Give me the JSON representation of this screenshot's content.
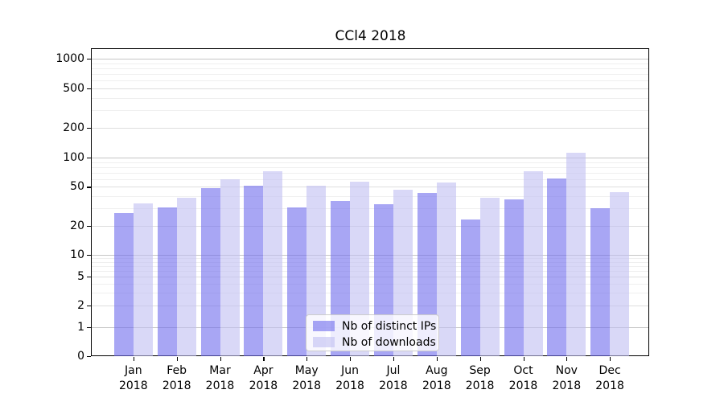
{
  "chart_data": {
    "type": "bar",
    "title": "CCl4 2018",
    "xlabel": "",
    "ylabel": "",
    "yscale": "symlog",
    "grid": true,
    "legend_position": "lower center",
    "ylim": [
      0,
      1400
    ],
    "y_ticks": [
      0,
      1,
      2,
      5,
      10,
      20,
      50,
      100,
      200,
      500,
      1000
    ],
    "categories": [
      "Jan 2018",
      "Feb 2018",
      "Mar 2018",
      "Apr 2018",
      "May 2018",
      "Jun 2018",
      "Jul 2018",
      "Aug 2018",
      "Sep 2018",
      "Oct 2018",
      "Nov 2018",
      "Dec 2018"
    ],
    "series": [
      {
        "name": "Nb of distinct IPs",
        "color": "#6E6BED",
        "alpha": 0.6,
        "composite_color_on_white": "#A8A6F4",
        "values": [
          27,
          31,
          49,
          51,
          31,
          36,
          33,
          43,
          23,
          37,
          61,
          30
        ]
      },
      {
        "name": "Nb of downloads",
        "color": "#C0BEF2",
        "alpha": 0.6,
        "composite_color_on_white": "#D9D8F7",
        "values": [
          34,
          39,
          60,
          72,
          51,
          57,
          47,
          56,
          39,
          72,
          112,
          44
        ]
      }
    ]
  }
}
